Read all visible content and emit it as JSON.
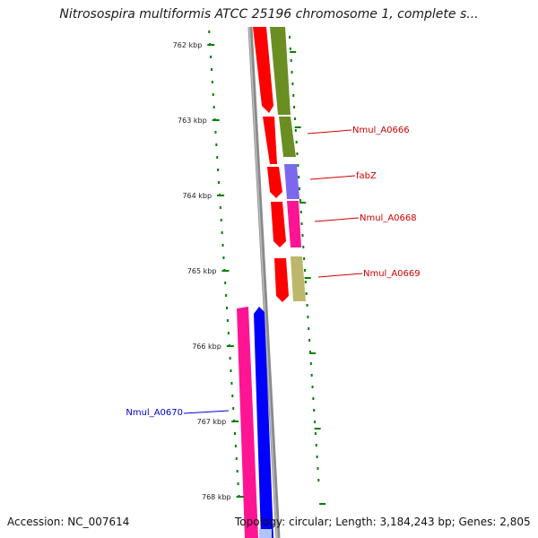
{
  "title": "Nitrosospira multiformis ATCC 25196 chromosome 1, complete s...",
  "footer": {
    "accession": "Accession: NC_007614",
    "info": "Topology: circular; Length: 3,184,243 bp; Genes: 2,805"
  },
  "ticks": [
    "762 kbp",
    "763 kbp",
    "764 kbp",
    "765 kbp",
    "766 kbp",
    "767 kbp",
    "768 kbp"
  ],
  "gene_labels": [
    {
      "text": "Nmul_A0666",
      "color": "#cc0000"
    },
    {
      "text": "fabZ",
      "color": "#cc0000"
    },
    {
      "text": "Nmul_A0668",
      "color": "#cc0000"
    },
    {
      "text": "Nmul_A0669",
      "color": "#cc0000"
    },
    {
      "text": "Nmul_A0670",
      "color": "#0000cc"
    }
  ],
  "colors": {
    "cds_red": "#ff0000",
    "olive": "#6b8e23",
    "purple": "#7b68ee",
    "pink": "#ff1493",
    "khaki": "#bdb76b",
    "blue": "#0000ff",
    "backbone": "#888888",
    "tick_green": "#008000"
  }
}
